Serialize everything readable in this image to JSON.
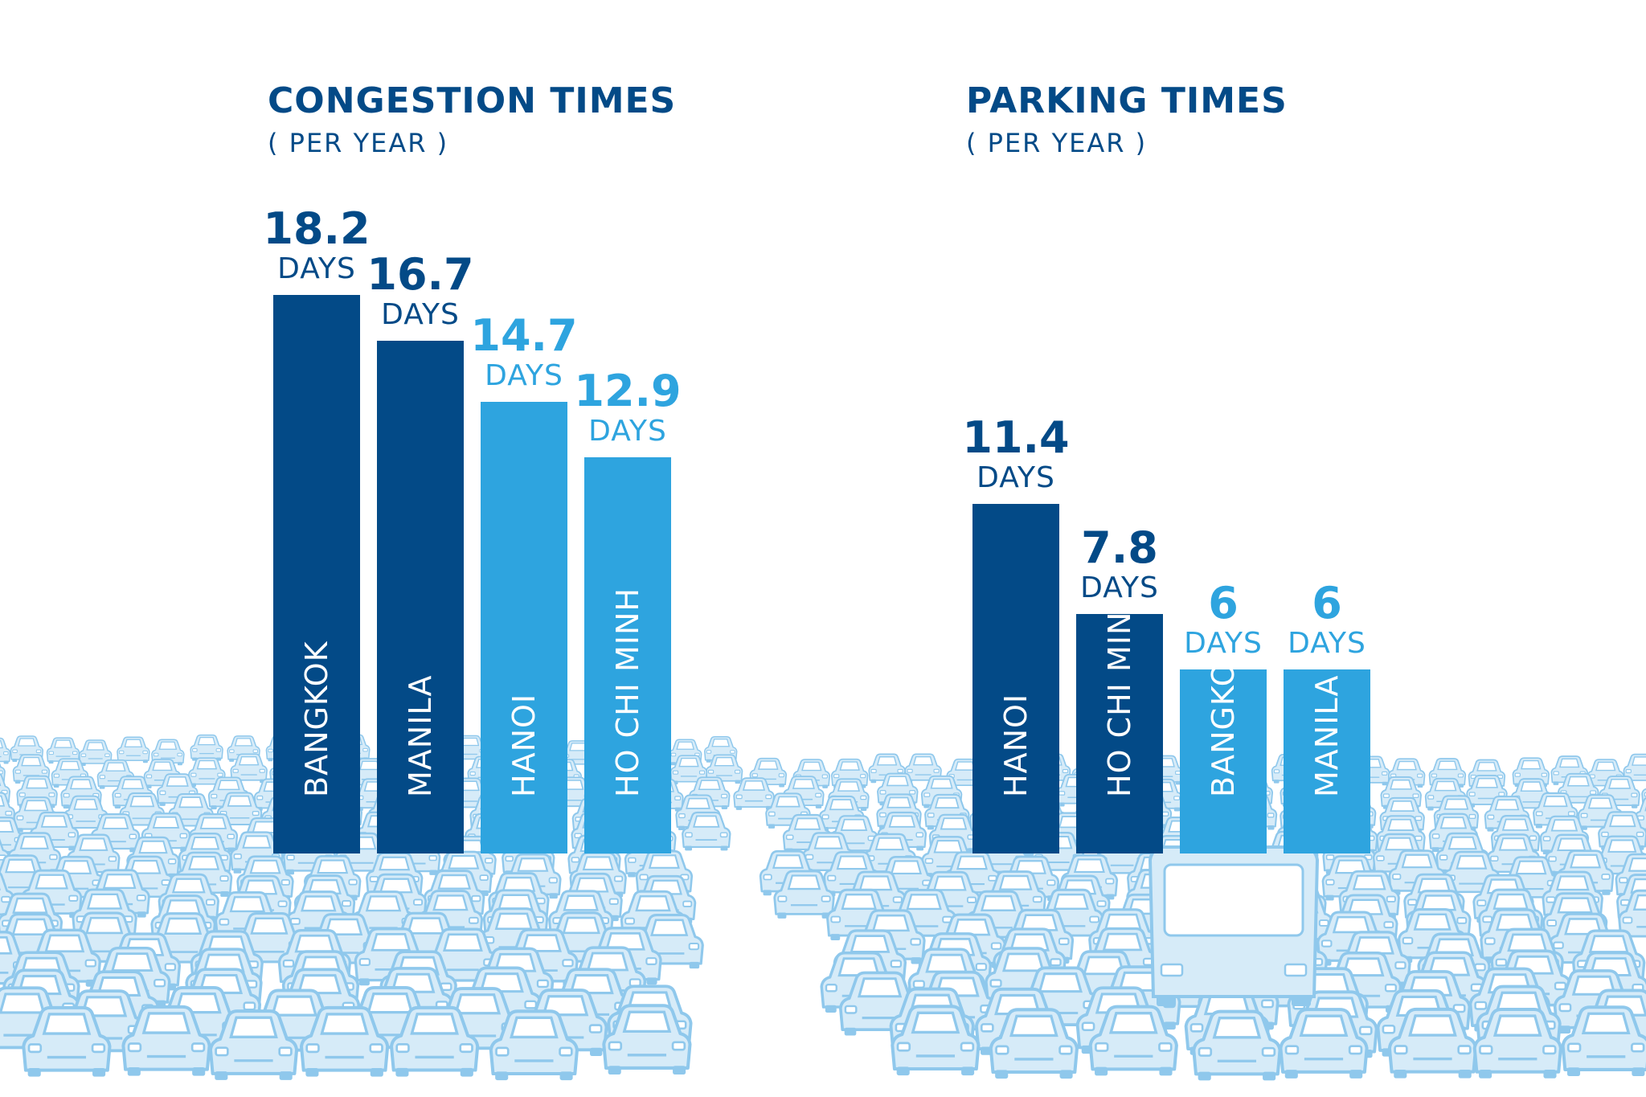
{
  "colors": {
    "navy": "#034a87",
    "sky": "#2ea4df",
    "traffic_fill": "#d6ebf8",
    "traffic_line": "#8fc8ec"
  },
  "background_illustration": "traffic-jam-illustration",
  "chart_data": [
    {
      "type": "bar",
      "title": "CONGESTION TIMES",
      "subtitle": "( PER YEAR )",
      "unit": "DAYS",
      "categories": [
        "BANGKOK",
        "MANILA",
        "HANOI",
        "HO CHI MINH"
      ],
      "values": [
        18.2,
        16.7,
        14.7,
        12.9
      ],
      "value_labels": [
        "18.2",
        "16.7",
        "14.7",
        "12.9"
      ],
      "bar_colors": [
        "#034a87",
        "#034a87",
        "#2ea4df",
        "#2ea4df"
      ],
      "category_label_placement": "inside bar, rotated vertical",
      "value_label_placement": "above bar",
      "grid": false,
      "legend": "none"
    },
    {
      "type": "bar",
      "title": "PARKING TIMES",
      "subtitle": "( PER YEAR )",
      "unit": "DAYS",
      "categories": [
        "HANOI",
        "HO CHI MINH",
        "BANGKOK",
        "MANILA"
      ],
      "values": [
        11.4,
        7.8,
        6,
        6
      ],
      "value_labels": [
        "11.4",
        "7.8",
        "6",
        "6"
      ],
      "bar_colors": [
        "#034a87",
        "#034a87",
        "#2ea4df",
        "#2ea4df"
      ],
      "category_label_placement": "inside bar, rotated vertical",
      "value_label_placement": "above bar",
      "grid": false,
      "legend": "none"
    }
  ]
}
